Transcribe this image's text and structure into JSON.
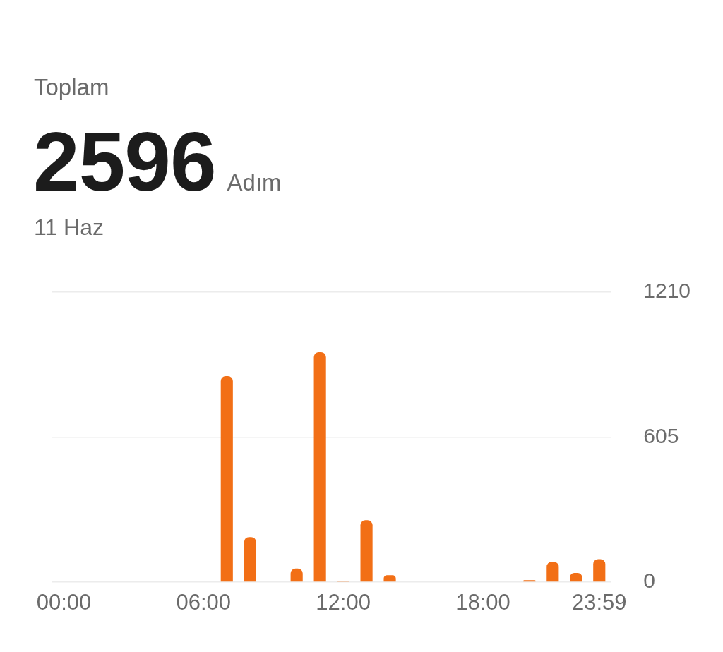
{
  "chart_data": {
    "type": "bar",
    "title": "Toplam",
    "subtitle": "11 Haz",
    "annotations": [
      "2596",
      "Adım"
    ],
    "categories": [
      "00:00",
      null,
      null,
      null,
      null,
      null,
      "06:00",
      null,
      null,
      null,
      null,
      null,
      "12:00",
      null,
      null,
      null,
      null,
      null,
      "18:00",
      null,
      null,
      null,
      null,
      "23:59"
    ],
    "values": [
      0,
      0,
      0,
      0,
      0,
      0,
      0,
      860,
      188,
      0,
      57,
      960,
      6,
      258,
      29,
      0,
      0,
      0,
      0,
      0,
      8,
      85,
      38,
      96
    ],
    "color": "#f26f16",
    "ylim": [
      0,
      1210
    ],
    "yticks": [
      0,
      605,
      1210
    ],
    "grid": "y"
  }
}
